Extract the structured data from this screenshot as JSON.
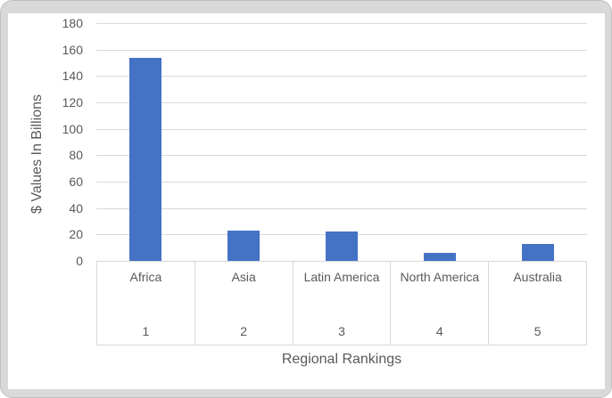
{
  "chart_data": {
    "type": "bar",
    "title": "",
    "xlabel": "Regional Rankings",
    "ylabel": "$ Values In Billions",
    "categories": [
      "Africa",
      "Asia",
      "Latin America",
      "North America",
      "Australia"
    ],
    "rank_labels": [
      "1",
      "2",
      "3",
      "4",
      "5"
    ],
    "values": [
      154,
      23,
      22,
      6,
      13
    ],
    "ylim": [
      0,
      180
    ],
    "ytick_step": 20,
    "yticks": [
      0,
      20,
      40,
      60,
      80,
      100,
      120,
      140,
      160,
      180
    ],
    "grid": true,
    "legend": "none",
    "colors": {
      "bar": "#4472C4",
      "gridline": "#D9D9D9",
      "axis_text": "#595959",
      "frame_background": "#D9D9D9",
      "chart_background": "#FFFFFF"
    }
  }
}
